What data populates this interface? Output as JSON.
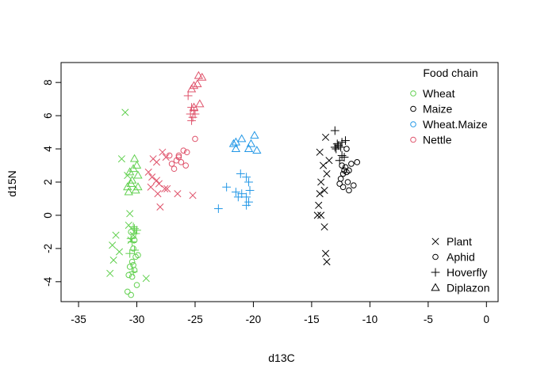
{
  "chart_data": {
    "type": "scatter",
    "xlabel": "d13C",
    "ylabel": "d15N",
    "xlim": [
      -36.5,
      1
    ],
    "ylim": [
      -5.2,
      9.2
    ],
    "x_ticks": [
      -35,
      -30,
      -25,
      -20,
      -15,
      -10,
      -5,
      0
    ],
    "y_ticks": [
      8,
      6,
      4,
      2,
      0,
      -2,
      -4
    ],
    "legend_chain": {
      "title": "Food chain",
      "placement": "top-right",
      "entries": [
        {
          "name": "Wheat",
          "color": "#61D04F"
        },
        {
          "name": "Maize",
          "color": "#000000"
        },
        {
          "name": "Wheat.Maize",
          "color": "#2297E6"
        },
        {
          "name": "Nettle",
          "color": "#DF536B"
        }
      ]
    },
    "legend_type": {
      "placement": "bottom-right",
      "entries": [
        {
          "name": "Plant",
          "symbol": "cross"
        },
        {
          "name": "Aphid",
          "symbol": "circle"
        },
        {
          "name": "Hoverfly",
          "symbol": "plus"
        },
        {
          "name": "Diplazon",
          "symbol": "triangle"
        }
      ]
    },
    "points": {
      "Wheat": {
        "Plant": [
          [
            -31.0,
            6.2
          ],
          [
            -31.3,
            3.4
          ],
          [
            -30.8,
            2.4
          ],
          [
            -30.6,
            0.1
          ],
          [
            -30.7,
            -0.6
          ],
          [
            -31.8,
            -1.2
          ],
          [
            -32.1,
            -1.8
          ],
          [
            -31.5,
            -2.2
          ],
          [
            -32.0,
            -2.7
          ],
          [
            -32.3,
            -3.5
          ],
          [
            -29.2,
            -3.8
          ],
          [
            -30.5,
            -1.5
          ],
          [
            -30.3,
            -1.2
          ]
        ],
        "Aphid": [
          [
            -30.5,
            -1.0
          ],
          [
            -30.2,
            -1.5
          ],
          [
            -30.3,
            -2.0
          ],
          [
            -30.1,
            -2.5
          ],
          [
            -30.4,
            -2.8
          ],
          [
            -30.2,
            -3.3
          ],
          [
            -30.4,
            -3.7
          ],
          [
            -30.7,
            -3.6
          ],
          [
            -30.0,
            -4.2
          ],
          [
            -30.8,
            -4.6
          ],
          [
            -30.5,
            -4.8
          ],
          [
            -30.3,
            -3.0
          ],
          [
            -29.9,
            -2.4
          ],
          [
            -30.6,
            -3.1
          ]
        ],
        "Hoverfly": [
          [
            -30.3,
            -0.7
          ],
          [
            -30.1,
            -1.1
          ],
          [
            -30.4,
            -1.6
          ],
          [
            -30.2,
            -2.1
          ],
          [
            -30.5,
            -1.4
          ],
          [
            -30.2,
            -0.8
          ],
          [
            -30.6,
            -2.3
          ],
          [
            -30.3,
            -3.4
          ],
          [
            -30.0,
            -0.9
          ]
        ],
        "Diplazon": [
          [
            -30.2,
            3.4
          ],
          [
            -30.0,
            3.0
          ],
          [
            -30.6,
            2.6
          ],
          [
            -30.4,
            2.1
          ],
          [
            -30.8,
            1.7
          ],
          [
            -30.1,
            1.5
          ],
          [
            -30.5,
            1.9
          ],
          [
            -29.9,
            2.4
          ],
          [
            -30.7,
            1.4
          ],
          [
            -30.3,
            2.8
          ],
          [
            -29.9,
            1.7
          ]
        ]
      },
      "Maize": {
        "Plant": [
          [
            -13.8,
            4.7
          ],
          [
            -14.3,
            3.8
          ],
          [
            -13.5,
            3.3
          ],
          [
            -14.0,
            3.0
          ],
          [
            -13.7,
            2.5
          ],
          [
            -14.2,
            2.0
          ],
          [
            -13.9,
            1.5
          ],
          [
            -14.3,
            1.3
          ],
          [
            -14.4,
            0.6
          ],
          [
            -14.2,
            0.0
          ],
          [
            -14.5,
            0.0
          ],
          [
            -13.9,
            -0.7
          ],
          [
            -13.8,
            -2.3
          ],
          [
            -13.7,
            -2.8
          ]
        ],
        "Aphid": [
          [
            -12.0,
            4.0
          ],
          [
            -11.6,
            3.1
          ],
          [
            -12.4,
            3.0
          ],
          [
            -12.1,
            2.9
          ],
          [
            -11.8,
            2.7
          ],
          [
            -12.3,
            2.5
          ],
          [
            -12.0,
            2.6
          ],
          [
            -12.5,
            2.2
          ],
          [
            -11.9,
            2.0
          ],
          [
            -12.6,
            1.9
          ],
          [
            -11.4,
            1.8
          ],
          [
            -12.3,
            1.7
          ],
          [
            -11.8,
            1.5
          ],
          [
            -11.1,
            3.2
          ],
          [
            -12.2,
            2.7
          ]
        ],
        "Hoverfly": [
          [
            -13.0,
            5.1
          ],
          [
            -12.4,
            4.4
          ],
          [
            -12.7,
            4.2
          ],
          [
            -12.9,
            4.0
          ],
          [
            -12.5,
            4.1
          ],
          [
            -12.2,
            3.5
          ],
          [
            -12.6,
            3.3
          ],
          [
            -12.8,
            4.3
          ],
          [
            -12.4,
            3.6
          ],
          [
            -12.1,
            4.5
          ],
          [
            -13.0,
            4.1
          ]
        ],
        "Diplazon": []
      },
      "Wheat.Maize": {
        "Plant": [],
        "Aphid": [],
        "Hoverfly": [
          [
            -23.0,
            0.4
          ],
          [
            -22.3,
            1.7
          ],
          [
            -21.3,
            1.1
          ],
          [
            -21.5,
            1.4
          ],
          [
            -21.1,
            2.5
          ],
          [
            -20.6,
            2.3
          ],
          [
            -20.4,
            2.0
          ],
          [
            -20.3,
            1.5
          ],
          [
            -20.6,
            1.1
          ],
          [
            -20.4,
            0.8
          ],
          [
            -20.6,
            0.6
          ],
          [
            -21.0,
            1.3
          ]
        ],
        "Diplazon": [
          [
            -21.7,
            4.3
          ],
          [
            -21.5,
            4.4
          ],
          [
            -21.0,
            4.6
          ],
          [
            -20.2,
            4.3
          ],
          [
            -19.9,
            4.8
          ],
          [
            -19.7,
            3.9
          ],
          [
            -20.4,
            4.0
          ],
          [
            -21.5,
            4.0
          ]
        ]
      },
      "Nettle": {
        "Plant": [
          [
            -28.6,
            3.4
          ],
          [
            -27.8,
            3.8
          ],
          [
            -28.3,
            3.2
          ],
          [
            -27.5,
            3.5
          ],
          [
            -29.0,
            2.6
          ],
          [
            -28.7,
            2.3
          ],
          [
            -28.3,
            2.1
          ],
          [
            -28.8,
            1.7
          ],
          [
            -28.1,
            1.9
          ],
          [
            -27.6,
            1.6
          ],
          [
            -28.2,
            1.3
          ],
          [
            -27.4,
            1.6
          ],
          [
            -26.5,
            1.3
          ],
          [
            -25.2,
            1.2
          ],
          [
            -28.0,
            0.5
          ]
        ],
        "Aphid": [
          [
            -27.2,
            3.6
          ],
          [
            -26.6,
            3.3
          ],
          [
            -26.2,
            3.2
          ],
          [
            -25.8,
            3.0
          ],
          [
            -26.4,
            3.5
          ],
          [
            -26.8,
            2.8
          ],
          [
            -25.7,
            3.8
          ],
          [
            -25.0,
            4.6
          ],
          [
            -26.0,
            3.9
          ],
          [
            -27.0,
            3.1
          ],
          [
            -26.4,
            3.6
          ]
        ],
        "Hoverfly": [
          [
            -25.6,
            7.2
          ],
          [
            -25.3,
            6.5
          ],
          [
            -25.1,
            6.3
          ],
          [
            -25.4,
            6.1
          ],
          [
            -25.2,
            5.9
          ],
          [
            -25.0,
            6.1
          ],
          [
            -25.3,
            5.7
          ]
        ],
        "Diplazon": [
          [
            -24.7,
            8.4
          ],
          [
            -24.4,
            8.3
          ],
          [
            -25.1,
            7.8
          ],
          [
            -25.3,
            7.6
          ],
          [
            -24.8,
            7.9
          ],
          [
            -24.6,
            6.7
          ],
          [
            -25.1,
            6.5
          ]
        ]
      }
    }
  }
}
